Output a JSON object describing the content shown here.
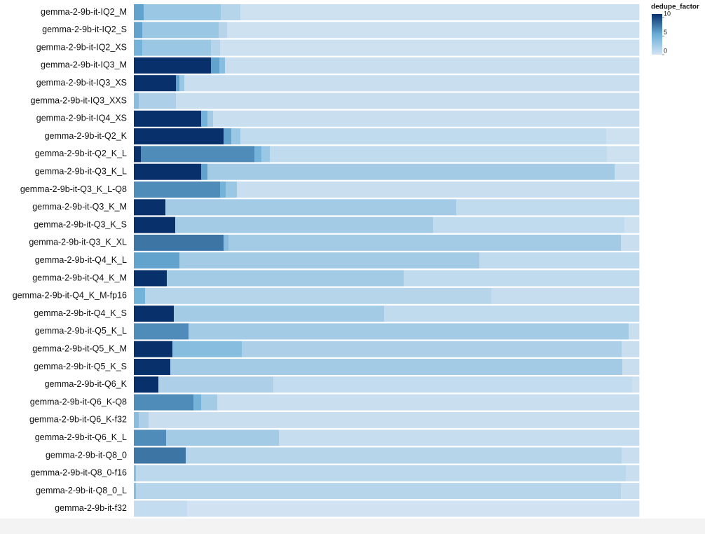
{
  "chart_data": {
    "type": "segment-strips",
    "legend_title": "dedupe_factor",
    "xlim": [
      0,
      721
    ],
    "colorlim": [
      0,
      11
    ],
    "colorticks": [
      0,
      5,
      10
    ],
    "color_range": [
      "#d3e4f3",
      "#6aaed6",
      "#08306b"
    ],
    "rows": [
      {
        "label": "gemma-2-9b-it-IQ2_M",
        "widths": [
          14,
          110,
          28,
          569
        ],
        "factors": [
          6,
          3,
          1.5,
          0.3
        ]
      },
      {
        "label": "gemma-2-9b-it-IQ2_S",
        "widths": [
          12,
          109,
          12,
          588
        ],
        "factors": [
          6,
          3,
          1.5,
          0.3
        ]
      },
      {
        "label": "gemma-2-9b-it-IQ2_XS",
        "widths": [
          12,
          98,
          13,
          598
        ],
        "factors": [
          5,
          3,
          1.5,
          0.3
        ]
      },
      {
        "label": "gemma-2-9b-it-IQ3_M",
        "widths": [
          110,
          12,
          8,
          591
        ],
        "factors": [
          11,
          6,
          4,
          0.5
        ]
      },
      {
        "label": "gemma-2-9b-it-IQ3_XS",
        "widths": [
          60,
          5,
          7,
          649
        ],
        "factors": [
          11,
          6,
          3,
          0.5
        ]
      },
      {
        "label": "gemma-2-9b-it-IQ3_XXS",
        "widths": [
          7,
          53,
          661
        ],
        "factors": [
          4,
          2,
          0.5
        ]
      },
      {
        "label": "gemma-2-9b-it-IQ4_XS",
        "widths": [
          96,
          9,
          8,
          608
        ],
        "factors": [
          11,
          5,
          2.5,
          0.5
        ]
      },
      {
        "label": "gemma-2-9b-it-Q2_K",
        "widths": [
          128,
          11,
          13,
          522,
          47
        ],
        "factors": [
          11,
          6,
          3,
          1,
          0.3
        ]
      },
      {
        "label": "gemma-2-9b-it-Q2_K_L",
        "widths": [
          10,
          162,
          10,
          12,
          481,
          46
        ],
        "factors": [
          11,
          7,
          5,
          3,
          1,
          0.3
        ]
      },
      {
        "label": "gemma-2-9b-it-Q3_K_L",
        "widths": [
          96,
          9,
          581,
          35
        ],
        "factors": [
          11,
          6,
          2.5,
          0.5
        ]
      },
      {
        "label": "gemma-2-9b-it-Q3_K_L-Q8",
        "widths": [
          123,
          8,
          16,
          574
        ],
        "factors": [
          7,
          5,
          3,
          0.5
        ]
      },
      {
        "label": "gemma-2-9b-it-Q3_K_M",
        "widths": [
          45,
          415,
          261
        ],
        "factors": [
          11,
          2.5,
          1
        ]
      },
      {
        "label": "gemma-2-9b-it-Q3_K_S",
        "widths": [
          59,
          368,
          273,
          21
        ],
        "factors": [
          11,
          2.5,
          1,
          0.3
        ]
      },
      {
        "label": "gemma-2-9b-it-Q3_K_XL",
        "widths": [
          128,
          7,
          560,
          26
        ],
        "factors": [
          8,
          4,
          2.5,
          0.5
        ]
      },
      {
        "label": "gemma-2-9b-it-Q4_K_L",
        "widths": [
          65,
          428,
          228
        ],
        "factors": [
          6,
          2.5,
          1
        ]
      },
      {
        "label": "gemma-2-9b-it-Q4_K_M",
        "widths": [
          47,
          338,
          336
        ],
        "factors": [
          11,
          2.5,
          1
        ]
      },
      {
        "label": "gemma-2-9b-it-Q4_K_M-fp16",
        "widths": [
          16,
          494,
          211
        ],
        "factors": [
          5,
          1.5,
          0.7
        ]
      },
      {
        "label": "gemma-2-9b-it-Q4_K_S",
        "widths": [
          57,
          300,
          364
        ],
        "factors": [
          11,
          2.5,
          1
        ]
      },
      {
        "label": "gemma-2-9b-it-Q5_K_L",
        "widths": [
          78,
          628,
          15
        ],
        "factors": [
          7,
          2.5,
          0.5
        ]
      },
      {
        "label": "gemma-2-9b-it-Q5_K_M",
        "widths": [
          55,
          99,
          542,
          25
        ],
        "factors": [
          11,
          4,
          2,
          0.5
        ]
      },
      {
        "label": "gemma-2-9b-it-Q5_K_S",
        "widths": [
          52,
          645,
          24
        ],
        "factors": [
          11,
          2.5,
          0.5
        ]
      },
      {
        "label": "gemma-2-9b-it-Q6_K",
        "widths": [
          35,
          164,
          512,
          10
        ],
        "factors": [
          11,
          2,
          0.8,
          0.3
        ]
      },
      {
        "label": "gemma-2-9b-it-Q6_K-Q8",
        "widths": [
          85,
          11,
          23,
          602
        ],
        "factors": [
          7,
          5,
          2.5,
          0.5
        ]
      },
      {
        "label": "gemma-2-9b-it-Q6_K-f32",
        "widths": [
          7,
          14,
          700
        ],
        "factors": [
          4,
          2,
          0.5
        ]
      },
      {
        "label": "gemma-2-9b-it-Q6_K_L",
        "widths": [
          46,
          161,
          514
        ],
        "factors": [
          7,
          2.5,
          0.7
        ]
      },
      {
        "label": "gemma-2-9b-it-Q8_0",
        "widths": [
          74,
          622,
          25
        ],
        "factors": [
          8,
          1.5,
          0.5
        ]
      },
      {
        "label": "gemma-2-9b-it-Q8_0-f16",
        "widths": [
          3,
          699,
          19
        ],
        "factors": [
          4,
          1.2,
          0.5
        ]
      },
      {
        "label": "gemma-2-9b-it-Q8_0_L",
        "widths": [
          3,
          692,
          26
        ],
        "factors": [
          4,
          1.5,
          0.5
        ]
      },
      {
        "label": "gemma-2-9b-it-f32",
        "widths": [
          76,
          645
        ],
        "factors": [
          0.8,
          0.1
        ]
      }
    ]
  }
}
